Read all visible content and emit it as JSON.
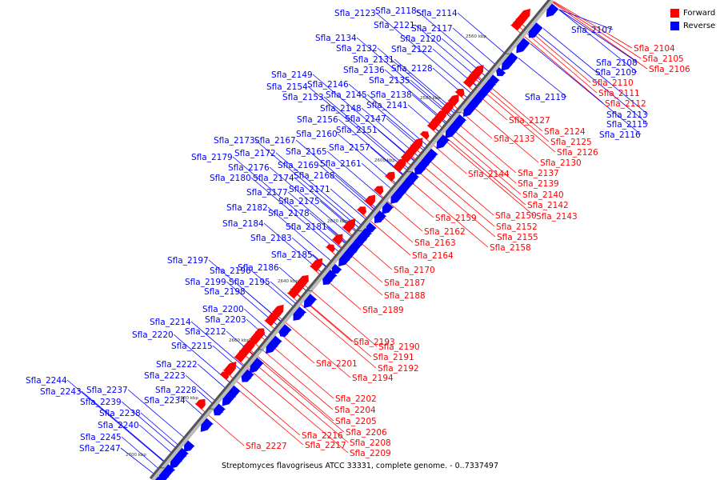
{
  "caption": "Streptomyces flavogriseus ATCC 33331, complete genome. - 0..7337497",
  "legend": [
    {
      "label": "Forward",
      "color": "#ff0000"
    },
    {
      "label": "Reverse",
      "color": "#0000ff"
    }
  ],
  "colors": {
    "forward": "#ff0000",
    "reverse": "#0000ff",
    "backbone": "#666666"
  },
  "ticks": [
    "2560 kbp",
    "2580 kbp",
    "2600 kbp",
    "2620 kbp",
    "2640 kbp",
    "2660 kbp",
    "2680 kbp",
    "2700 kbp"
  ],
  "forward_genes": [
    "Sfla_2104",
    "Sfla_2105",
    "Sfla_2106",
    "Sfla_2110",
    "Sfla_2111",
    "Sfla_2112",
    "Sfla_2127",
    "Sfla_2124",
    "Sfla_2125",
    "Sfla_2126",
    "Sfla_2133",
    "Sfla_2130",
    "Sfla_2137",
    "Sfla_2139",
    "Sfla_2144",
    "Sfla_2140",
    "Sfla_2142",
    "Sfla_2143",
    "Sfla_2150",
    "Sfla_2159",
    "Sfla_2152",
    "Sfla_2155",
    "Sfla_2162",
    "Sfla_2158",
    "Sfla_2163",
    "Sfla_2164",
    "Sfla_2170",
    "Sfla_2187",
    "Sfla_2188",
    "Sfla_2189",
    "Sfla_2190",
    "Sfla_2193",
    "Sfla_2191",
    "Sfla_2192",
    "Sfla_2201",
    "Sfla_2194",
    "Sfla_2202",
    "Sfla_2204",
    "Sfla_2205",
    "Sfla_2206",
    "Sfla_2216",
    "Sfla_2208",
    "Sfla_2217",
    "Sfla_2209",
    "Sfla_2227"
  ],
  "reverse_genes": [
    "Sfla_2107",
    "Sfla_2108",
    "Sfla_2109",
    "Sfla_2119",
    "Sfla_2113",
    "Sfla_2115",
    "Sfla_2116",
    "Sfla_2123",
    "Sfla_2118",
    "Sfla_2114",
    "Sfla_2121",
    "Sfla_2117",
    "Sfla_2134",
    "Sfla_2120",
    "Sfla_2132",
    "Sfla_2122",
    "Sfla_2131",
    "Sfla_2128",
    "Sfla_2136",
    "Sfla_2149",
    "Sfla_2135",
    "Sfla_2146",
    "Sfla_2154",
    "Sfla_2153",
    "Sfla_2145",
    "Sfla_2138",
    "Sfla_2141",
    "Sfla_2148",
    "Sfla_2156",
    "Sfla_2147",
    "Sfla_2151",
    "Sfla_2160",
    "Sfla_2173",
    "Sfla_2167",
    "Sfla_2157",
    "Sfla_2165",
    "Sfla_2172",
    "Sfla_2179",
    "Sfla_2161",
    "Sfla_2169",
    "Sfla_2176",
    "Sfla_2168",
    "Sfla_2180",
    "Sfla_2174",
    "Sfla_2171",
    "Sfla_2177",
    "Sfla_2175",
    "Sfla_2182",
    "Sfla_2178",
    "Sfla_2181",
    "Sfla_2184",
    "Sfla_2183",
    "Sfla_2185",
    "Sfla_2197",
    "Sfla_2186",
    "Sfla_2196",
    "Sfla_2199",
    "Sfla_2195",
    "Sfla_2198",
    "Sfla_2200",
    "Sfla_2203",
    "Sfla_2214",
    "Sfla_2212",
    "Sfla_2220",
    "Sfla_2215",
    "Sfla_2222",
    "Sfla_2223",
    "Sfla_2228",
    "Sfla_2244",
    "Sfla_2237",
    "Sfla_2243",
    "Sfla_2234",
    "Sfla_2239",
    "Sfla_2238",
    "Sfla_2240",
    "Sfla_2245",
    "Sfla_2247"
  ]
}
